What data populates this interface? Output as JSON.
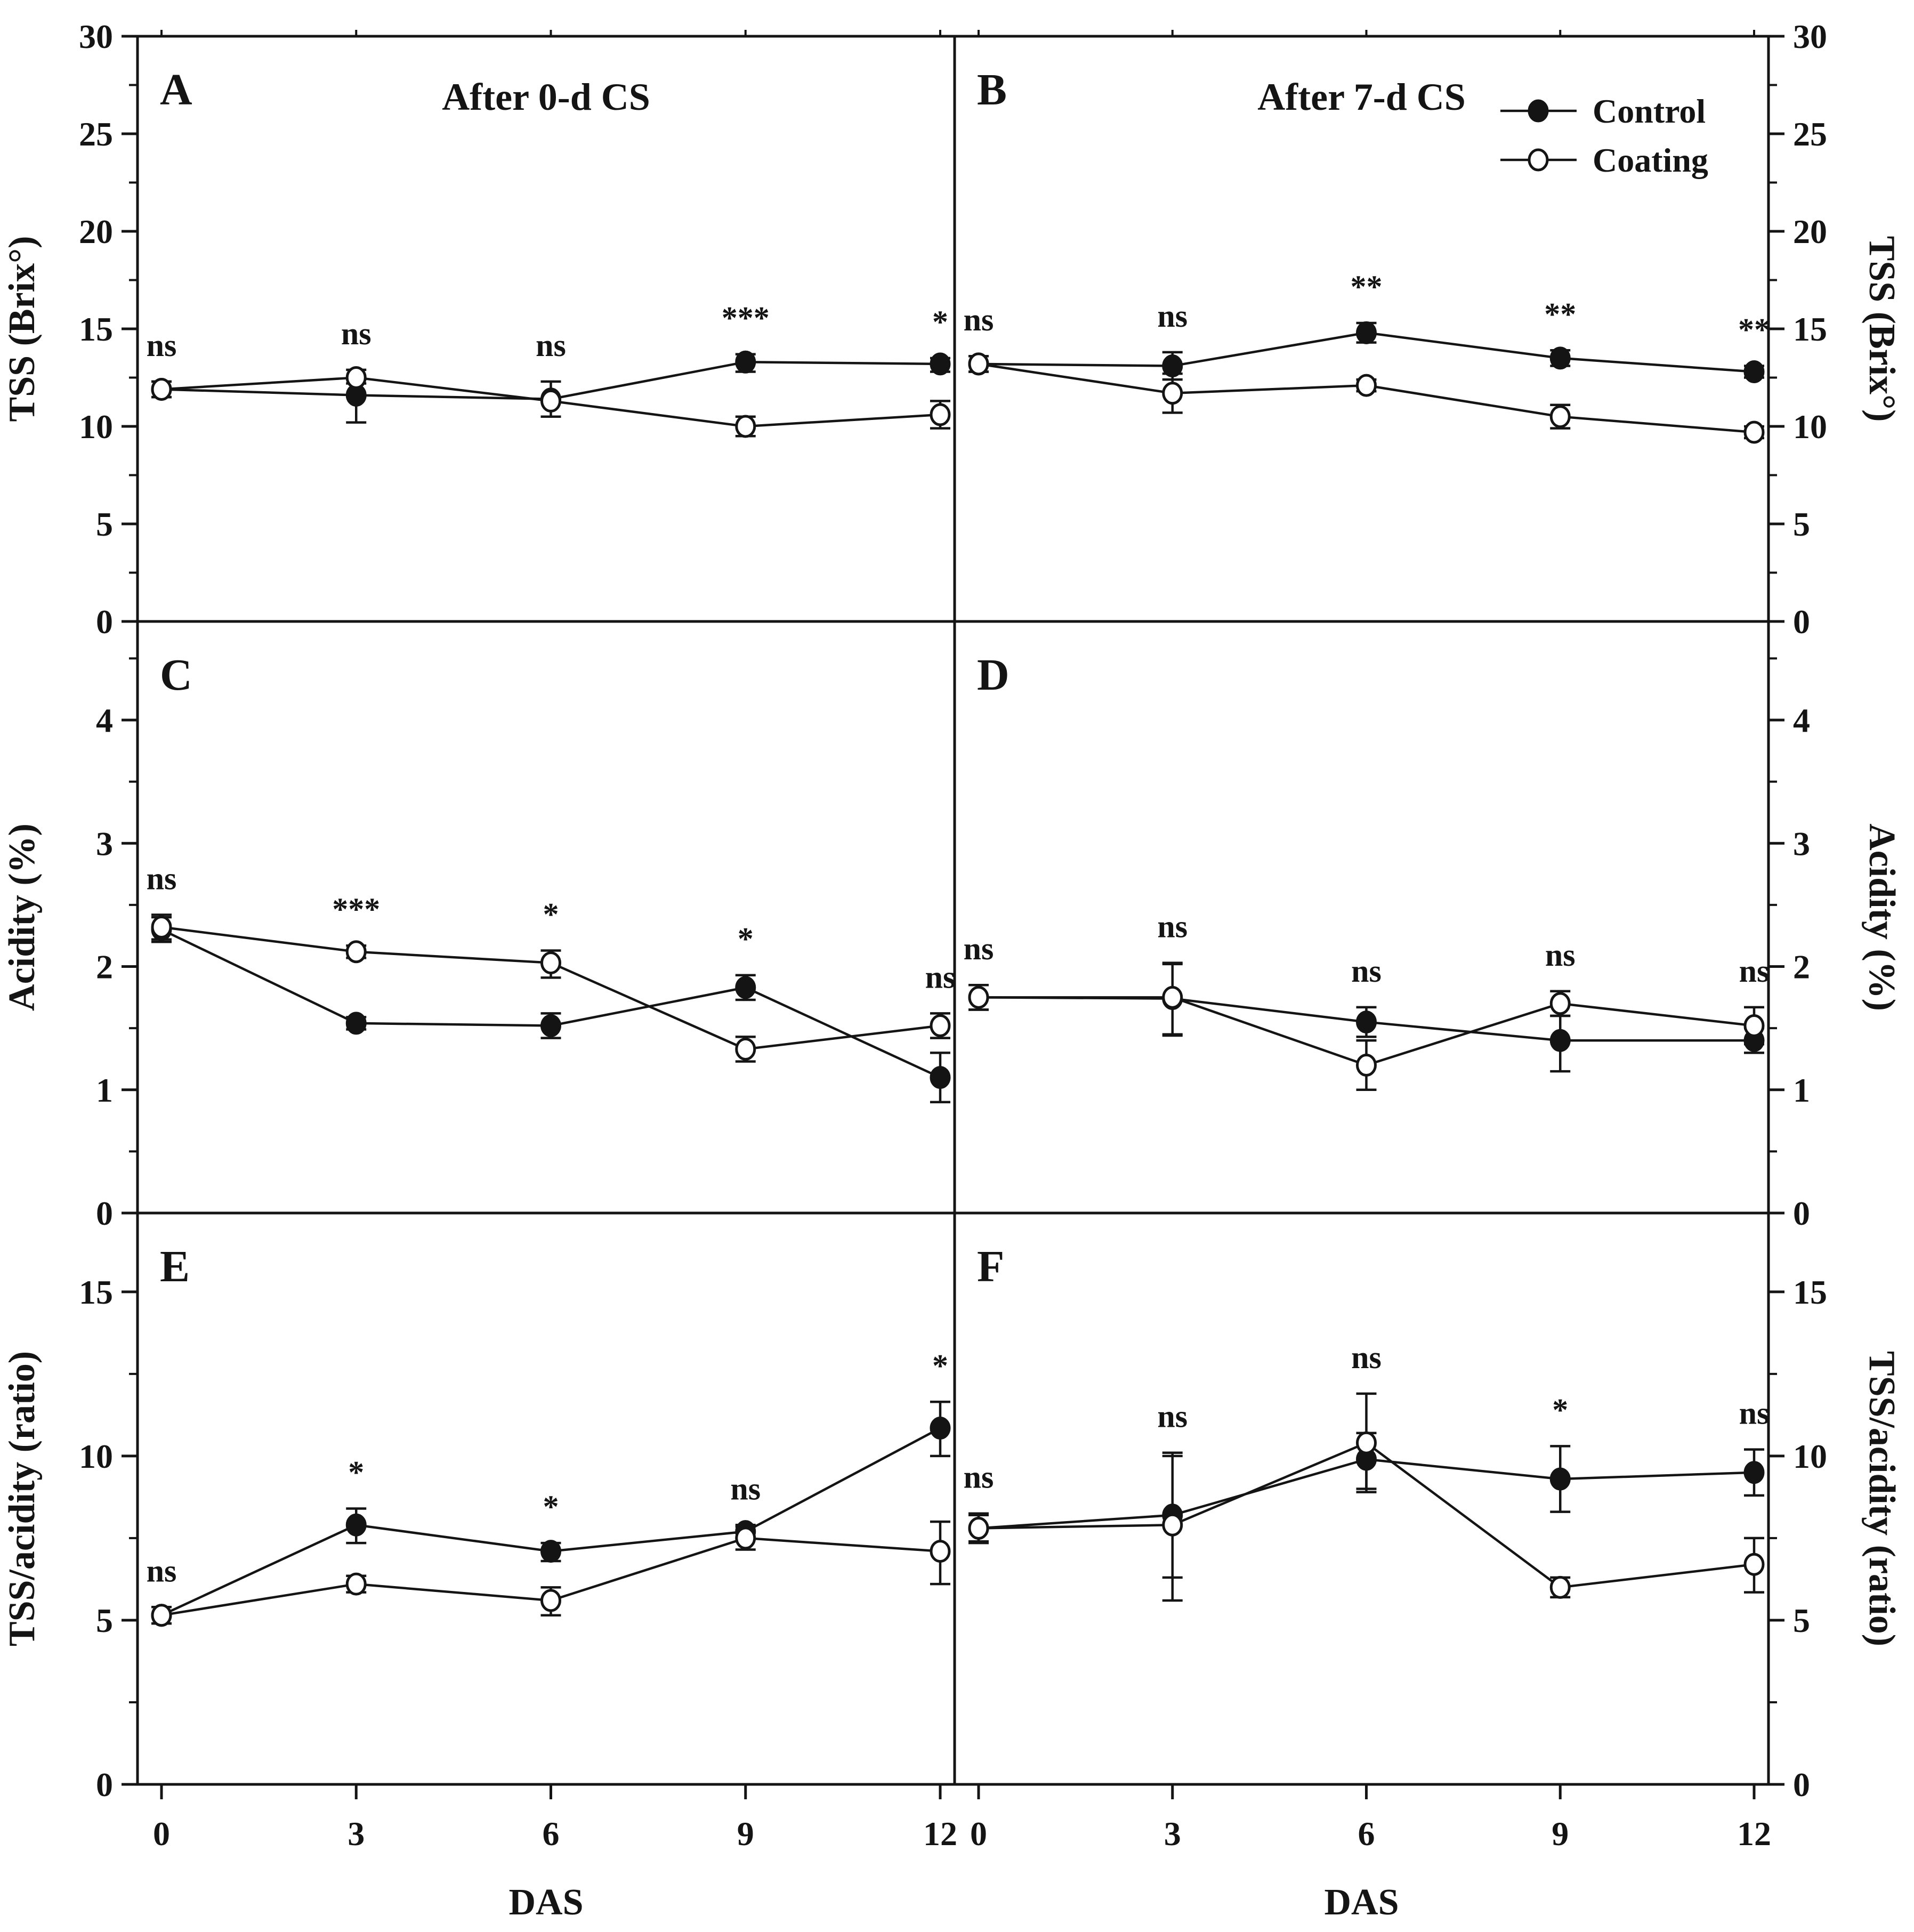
{
  "figure": {
    "background": "#ffffff",
    "ink": "#141414",
    "x_axis": {
      "label": "DAS",
      "ticks": [
        0,
        3,
        6,
        9,
        12
      ]
    },
    "columns": [
      {
        "title": "After 0-d CS"
      },
      {
        "title": "After 7-d CS"
      }
    ],
    "rows": [
      {
        "y_label": "TSS (Brix°)",
        "y_max": 30,
        "y_major_ticks": [
          0,
          5,
          10,
          15,
          20,
          25,
          30
        ],
        "y_minor_step": 2.5
      },
      {
        "y_label": "Acidity (%)",
        "y_max": 4.8,
        "y_major_ticks": [
          0,
          1,
          2,
          3,
          4
        ],
        "y_minor_step": 0.5
      },
      {
        "y_label": "TSS/acidity (ratio)",
        "y_max": 17.4,
        "y_major_ticks": [
          0,
          5,
          10,
          15
        ],
        "y_minor_step": 2.5
      }
    ],
    "legend": {
      "location": "panel-B-top-right",
      "items": [
        {
          "label": "Control",
          "marker": "filled-circle"
        },
        {
          "label": "Coating",
          "marker": "open-circle"
        }
      ]
    }
  },
  "chart_data": [
    {
      "panel": "A",
      "type": "line",
      "row": 0,
      "col": 0,
      "title": "After 0-d CS",
      "xlabel": "DAS",
      "ylabel": "TSS (Brix°)",
      "x": [
        0,
        3,
        6,
        9,
        12
      ],
      "ylim": [
        0,
        30
      ],
      "show_legend": false,
      "series": [
        {
          "name": "Control",
          "marker": "filled-circle",
          "values": [
            11.9,
            11.6,
            11.4,
            13.3,
            13.2
          ],
          "err_up": [
            0.4,
            0.0,
            0.0,
            0.4,
            0.3
          ],
          "err_down": [
            0.4,
            1.4,
            0.0,
            0.5,
            0.4
          ]
        },
        {
          "name": "Coating",
          "marker": "open-circle",
          "values": [
            11.9,
            12.5,
            11.3,
            10.0,
            10.6
          ],
          "err_up": [
            0.4,
            0.4,
            1.0,
            0.5,
            0.7
          ],
          "err_down": [
            0.4,
            0.3,
            0.8,
            0.5,
            0.7
          ]
        }
      ],
      "significance": [
        "ns",
        "ns",
        "ns",
        "***",
        "*"
      ]
    },
    {
      "panel": "B",
      "type": "line",
      "row": 0,
      "col": 1,
      "title": "After 7-d CS",
      "xlabel": "DAS",
      "ylabel": "TSS (Brix°)",
      "x": [
        0,
        3,
        6,
        9,
        12
      ],
      "ylim": [
        0,
        30
      ],
      "show_legend": true,
      "series": [
        {
          "name": "Control",
          "marker": "filled-circle",
          "values": [
            13.2,
            13.1,
            14.8,
            13.5,
            12.8
          ],
          "err_up": [
            0.4,
            0.7,
            0.5,
            0.4,
            0.3
          ],
          "err_down": [
            0.4,
            0.7,
            0.5,
            0.4,
            0.3
          ]
        },
        {
          "name": "Coating",
          "marker": "open-circle",
          "values": [
            13.2,
            11.7,
            12.1,
            10.5,
            9.7
          ],
          "err_up": [
            0.4,
            1.0,
            0.3,
            0.6,
            0.3
          ],
          "err_down": [
            0.4,
            1.0,
            0.3,
            0.6,
            0.3
          ]
        }
      ],
      "significance": [
        "ns",
        "ns",
        "**",
        "**",
        "**"
      ]
    },
    {
      "panel": "C",
      "type": "line",
      "row": 1,
      "col": 0,
      "title": "",
      "xlabel": "DAS",
      "ylabel": "Acidity (%)",
      "x": [
        0,
        3,
        6,
        9,
        12
      ],
      "ylim": [
        0,
        4.8
      ],
      "show_legend": false,
      "series": [
        {
          "name": "Control",
          "marker": "filled-circle",
          "values": [
            2.3,
            1.54,
            1.52,
            1.83,
            1.1
          ],
          "err_up": [
            0.1,
            0.05,
            0.1,
            0.1,
            0.2
          ],
          "err_down": [
            0.1,
            0.05,
            0.1,
            0.1,
            0.2
          ]
        },
        {
          "name": "Coating",
          "marker": "open-circle",
          "values": [
            2.32,
            2.12,
            2.03,
            1.33,
            1.52
          ],
          "err_up": [
            0.1,
            0.05,
            0.1,
            0.1,
            0.1
          ],
          "err_down": [
            0.1,
            0.05,
            0.12,
            0.1,
            0.1
          ]
        }
      ],
      "significance": [
        "ns",
        "***",
        "*",
        "*",
        "ns"
      ]
    },
    {
      "panel": "D",
      "type": "line",
      "row": 1,
      "col": 1,
      "title": "",
      "xlabel": "DAS",
      "ylabel": "Acidity (%)",
      "x": [
        0,
        3,
        6,
        9,
        12
      ],
      "ylim": [
        0,
        4.8
      ],
      "show_legend": false,
      "series": [
        {
          "name": "Control",
          "marker": "filled-circle",
          "values": [
            1.75,
            1.74,
            1.55,
            1.4,
            1.4
          ],
          "err_up": [
            0.1,
            0.28,
            0.12,
            0.2,
            0.1
          ],
          "err_down": [
            0.1,
            0.3,
            0.12,
            0.25,
            0.1
          ]
        },
        {
          "name": "Coating",
          "marker": "open-circle",
          "values": [
            1.75,
            1.75,
            1.2,
            1.7,
            1.52
          ],
          "err_up": [
            0.1,
            0.28,
            0.2,
            0.1,
            0.15
          ],
          "err_down": [
            0.1,
            0.3,
            0.2,
            0.1,
            0.15
          ]
        }
      ],
      "significance": [
        "ns",
        "ns",
        "ns",
        "ns",
        "ns"
      ]
    },
    {
      "panel": "E",
      "type": "line",
      "row": 2,
      "col": 0,
      "title": "",
      "xlabel": "DAS",
      "ylabel": "TSS/acidity (ratio)",
      "x": [
        0,
        3,
        6,
        9,
        12
      ],
      "ylim": [
        0,
        17.4
      ],
      "show_legend": false,
      "series": [
        {
          "name": "Control",
          "marker": "filled-circle",
          "values": [
            5.15,
            7.9,
            7.1,
            7.7,
            10.85
          ],
          "err_up": [
            0.25,
            0.5,
            0.25,
            0.2,
            0.8
          ],
          "err_down": [
            0.25,
            0.55,
            0.3,
            0.2,
            0.85
          ]
        },
        {
          "name": "Coating",
          "marker": "open-circle",
          "values": [
            5.15,
            6.1,
            5.6,
            7.5,
            7.1
          ],
          "err_up": [
            0.25,
            0.25,
            0.4,
            0.35,
            0.9
          ],
          "err_down": [
            0.25,
            0.25,
            0.45,
            0.35,
            1.0
          ]
        }
      ],
      "significance": [
        "ns",
        "*",
        "*",
        "ns",
        "*"
      ]
    },
    {
      "panel": "F",
      "type": "line",
      "row": 2,
      "col": 1,
      "title": "",
      "xlabel": "DAS",
      "ylabel": "TSS/acidity (ratio)",
      "x": [
        0,
        3,
        6,
        9,
        12
      ],
      "ylim": [
        0,
        17.4
      ],
      "show_legend": false,
      "series": [
        {
          "name": "Control",
          "marker": "filled-circle",
          "values": [
            7.8,
            8.2,
            9.9,
            9.3,
            9.5
          ],
          "err_up": [
            0.4,
            1.9,
            0.8,
            1.0,
            0.7
          ],
          "err_down": [
            0.4,
            1.9,
            0.9,
            1.0,
            0.7
          ]
        },
        {
          "name": "Coating",
          "marker": "open-circle",
          "values": [
            7.8,
            7.9,
            10.4,
            6.0,
            6.7
          ],
          "err_up": [
            0.45,
            2.1,
            1.5,
            0.3,
            0.8
          ],
          "err_down": [
            0.45,
            2.3,
            1.5,
            0.3,
            0.85
          ]
        }
      ],
      "significance": [
        "ns",
        "ns",
        "ns",
        "*",
        "ns"
      ]
    }
  ]
}
